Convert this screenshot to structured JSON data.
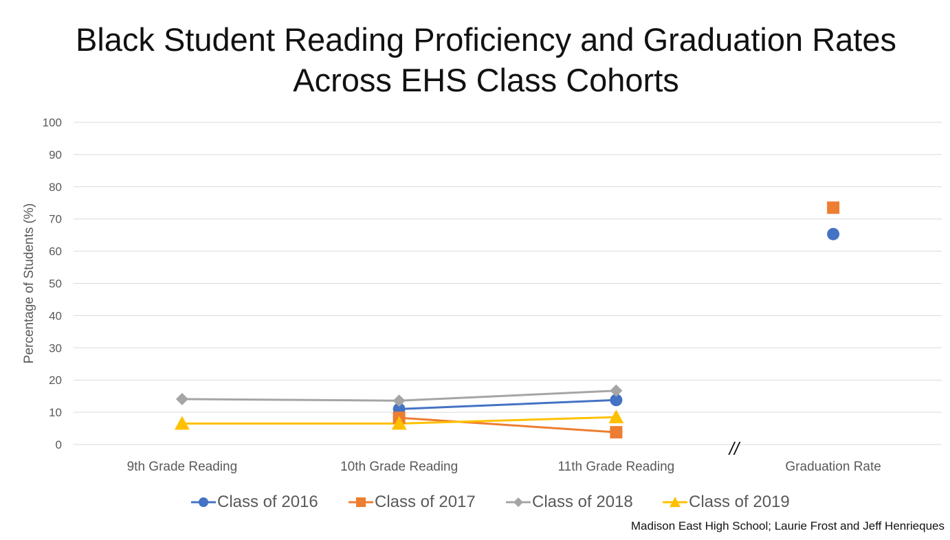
{
  "title_line1": "Black Student Reading Proficiency and Graduation Rates",
  "title_line2": "Across EHS Class Cohorts",
  "source": "Madison East High School; Laurie Frost and Jeff Henrieques",
  "break_mark": "//",
  "colors": {
    "class2016": "#4472C4",
    "class2017": "#ED7D31",
    "class2018": "#A5A5A5",
    "class2019": "#FFC000",
    "grid": "#d9d9d9",
    "text": "#595959"
  },
  "chart_data": {
    "type": "line",
    "title": "Black Student Reading Proficiency and Graduation Rates Across EHS Class Cohorts",
    "ylabel": "Percentage of Students (%)",
    "xlabel": "",
    "ylim": [
      0,
      100
    ],
    "yticks": [
      0,
      10,
      20,
      30,
      40,
      50,
      60,
      70,
      80,
      90,
      100
    ],
    "grid": true,
    "legend_position": "bottom",
    "categories": [
      "9th Grade Reading",
      "10th Grade Reading",
      "11th Grade Reading",
      "Graduation Rate"
    ],
    "series": [
      {
        "name": "Class of 2016",
        "marker": "circle",
        "color": "#4472C4",
        "values": [
          null,
          11,
          13.8,
          65.3
        ]
      },
      {
        "name": "Class of 2017",
        "marker": "square",
        "color": "#ED7D31",
        "values": [
          null,
          8.3,
          3.8,
          73.5
        ]
      },
      {
        "name": "Class of 2018",
        "marker": "diamond",
        "color": "#A5A5A5",
        "values": [
          14.1,
          13.6,
          16.7,
          null
        ]
      },
      {
        "name": "Class of 2019",
        "marker": "triangle",
        "color": "#FFC000",
        "values": [
          6.5,
          6.5,
          8.5,
          null
        ]
      }
    ]
  }
}
